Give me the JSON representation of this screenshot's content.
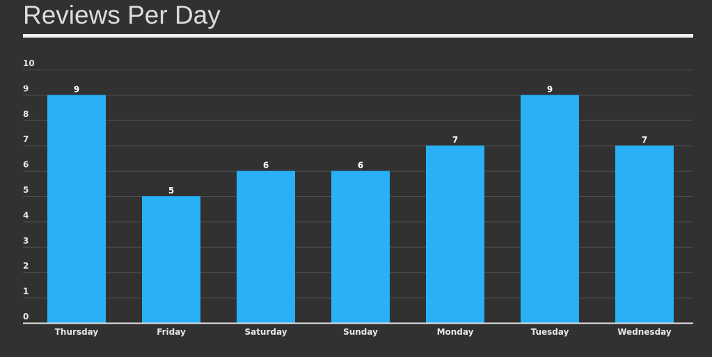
{
  "title": "Reviews Per Day",
  "colors": {
    "background": "#313131",
    "bar": "#29b0f6",
    "grid": "#4f4f4f",
    "text": "#e6e6e6"
  },
  "chart_data": {
    "type": "bar",
    "title": "Reviews Per Day",
    "xlabel": "",
    "ylabel": "",
    "categories": [
      "Thursday",
      "Friday",
      "Saturday",
      "Sunday",
      "Monday",
      "Tuesday",
      "Wednesday"
    ],
    "values": [
      9,
      5,
      6,
      6,
      7,
      9,
      7
    ],
    "ylim": [
      0,
      10
    ],
    "yticks": [
      0,
      1,
      2,
      3,
      4,
      5,
      6,
      7,
      8,
      9,
      10
    ],
    "grid": true,
    "legend": "none",
    "data_labels": true
  }
}
